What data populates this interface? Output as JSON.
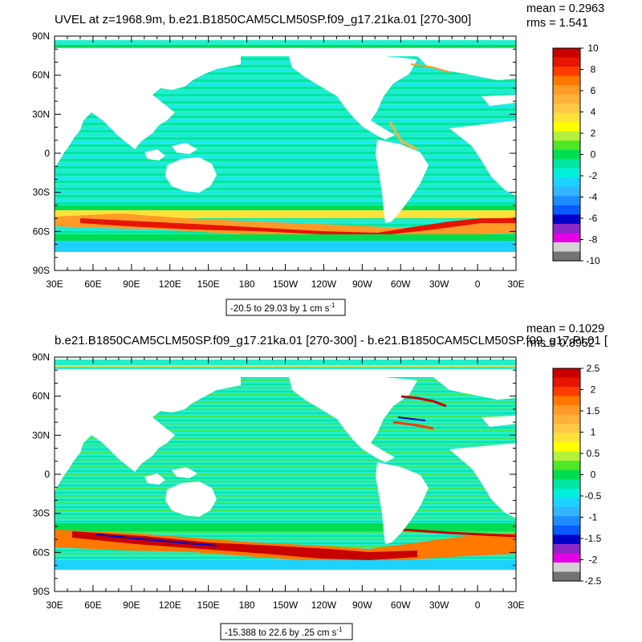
{
  "chart_data": [
    {
      "type": "heatmap",
      "title": "UVEL at z=1968.9m, b.e21.B1850CAM5CLM50SP.f09_g17.21ka.01 [270-300]",
      "mean_text": "mean = 0.2963",
      "rms_text": "rms = 1.541",
      "range_text": "-20.5 to 29.03 by 1 cm s",
      "range_sup": "-1",
      "x_ticks": [
        "30E",
        "60E",
        "90E",
        "120E",
        "150E",
        "180",
        "150W",
        "120W",
        "90W",
        "60W",
        "30W",
        "0",
        "30E"
      ],
      "y_ticks": [
        "90N",
        "60N",
        "30N",
        "0",
        "30S",
        "60S",
        "90S"
      ],
      "colorbar": {
        "labels": [
          "10",
          "8",
          "6",
          "4",
          "2",
          "0",
          "-2",
          "-4",
          "-6",
          "-8",
          "-10"
        ],
        "colors": [
          "#c80000",
          "#e61400",
          "#ff3c00",
          "#ff7800",
          "#ff9a28",
          "#ffb13c",
          "#ffc846",
          "#ffe13c",
          "#ffff00",
          "#b4f03c",
          "#50e628",
          "#00dc50",
          "#00e6a0",
          "#00f0dc",
          "#1ed2ff",
          "#32b4ff",
          "#1e8cff",
          "#0a5aff",
          "#0000c8",
          "#8c28c8",
          "#e600e6",
          "#d2d2d2",
          "#737373"
        ]
      },
      "dominant_band": "Antarctic Circumpolar Current, 40S-65S, values 2 to 10",
      "background_values": "-2 to 0 (cyan/green)"
    },
    {
      "type": "heatmap",
      "title": "b.e21.B1850CAM5CLM50SP.f09_g17.21ka.01 [270-300] - b.e21.B1850CAM5CLM50SP.f09_g17.PI.01 [",
      "mean_text": "mean = 0.1029",
      "rms_text": "rms = 0.8952",
      "range_text": "-15.388 to 22.6 by .25 cm s",
      "range_sup": "-1",
      "x_ticks": [
        "30E",
        "60E",
        "90E",
        "120E",
        "150E",
        "180",
        "150W",
        "120W",
        "90W",
        "60W",
        "30W",
        "0",
        "30E"
      ],
      "y_ticks": [
        "90N",
        "60N",
        "30N",
        "0",
        "30S",
        "60S",
        "90S"
      ],
      "colorbar": {
        "labels": [
          "2.5",
          "2",
          "1.5",
          "1",
          "0.5",
          "0",
          "-0.5",
          "-1",
          "-1.5",
          "-2",
          "-2.5"
        ],
        "colors": [
          "#c80000",
          "#e61400",
          "#ff3c00",
          "#ff7800",
          "#ff9a28",
          "#ffb13c",
          "#ffc846",
          "#ffe13c",
          "#ffff00",
          "#b4f03c",
          "#50e628",
          "#00dc50",
          "#00e6a0",
          "#00f0dc",
          "#1ed2ff",
          "#32b4ff",
          "#1e8cff",
          "#0a5aff",
          "#0000c8",
          "#8c28c8",
          "#e600e6",
          "#d2d2d2",
          "#737373"
        ]
      },
      "dominant_band": "Antarctic Circumpolar Current, 45S-65S, values 1.5 to 2.5",
      "background_values": "-0.5 to 0.5 (cyan/green)"
    }
  ]
}
